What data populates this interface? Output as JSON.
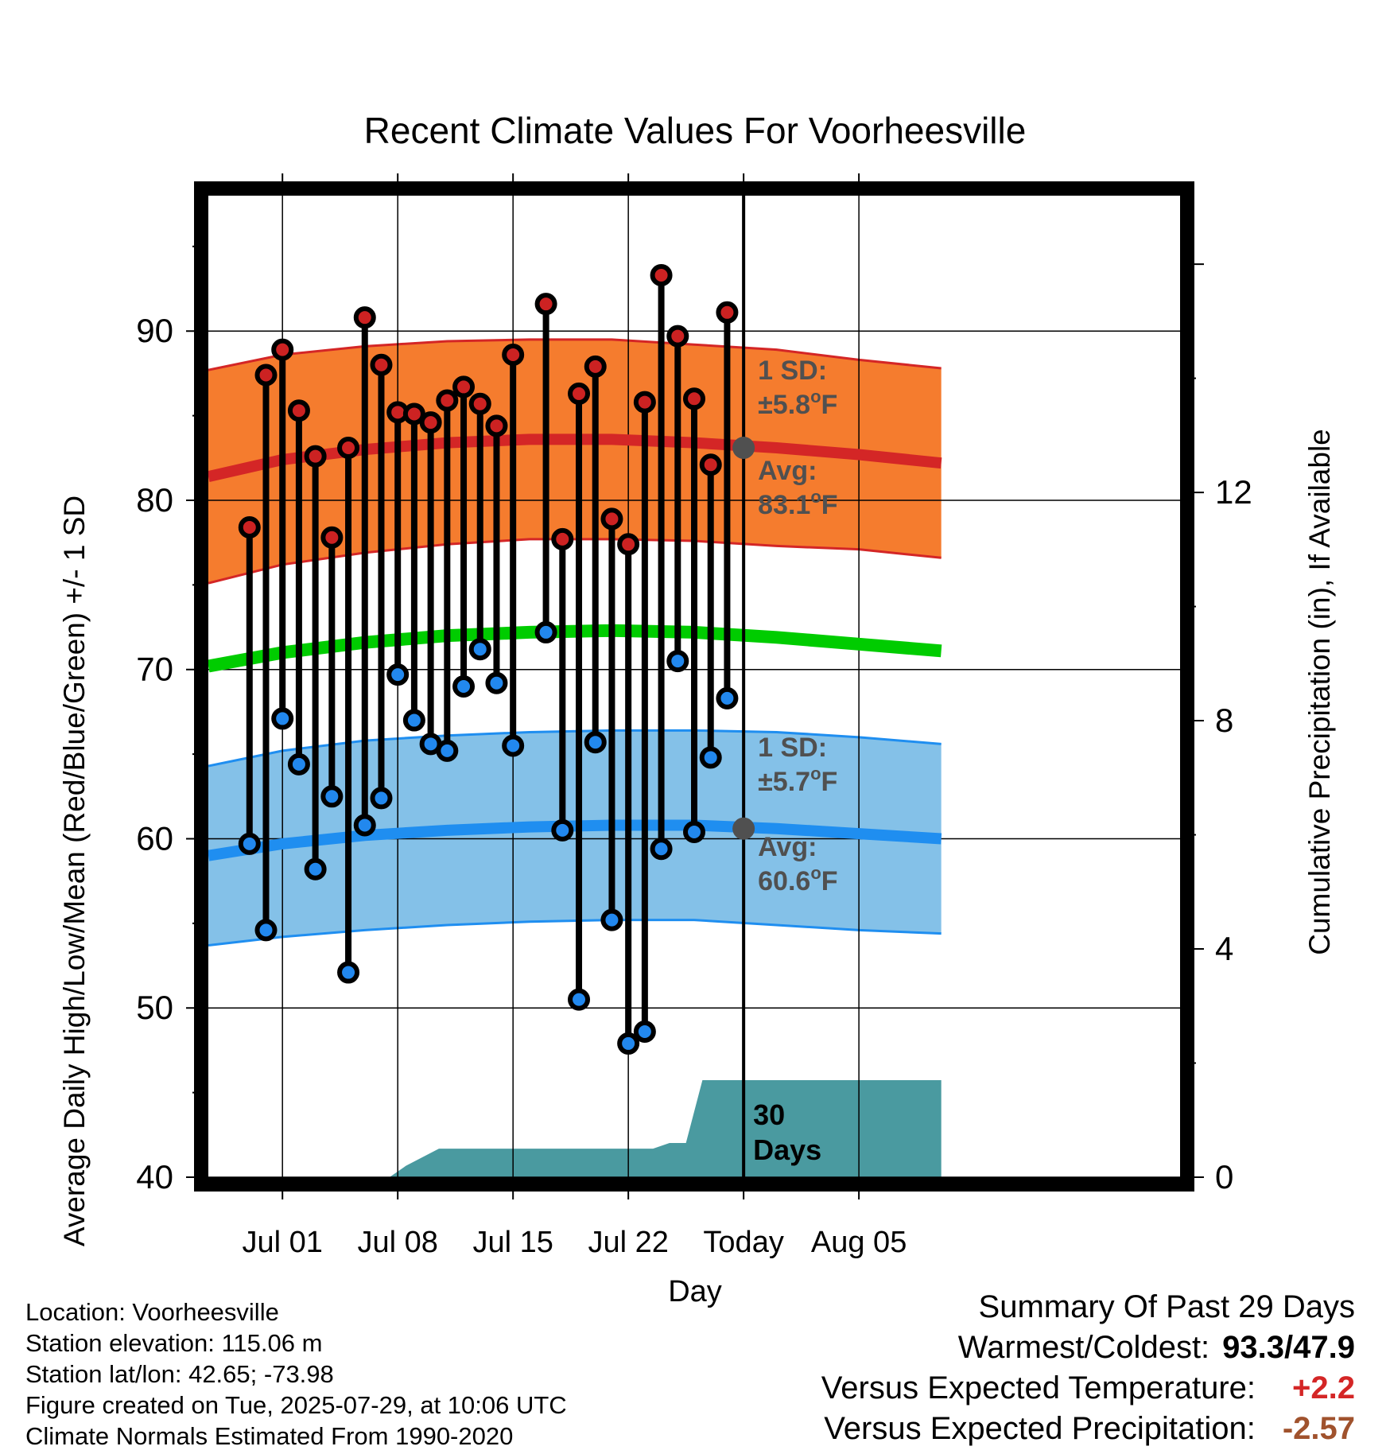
{
  "chart_data": {
    "type": "line",
    "title": "Recent Climate Values For Voorheesville",
    "xlabel": "Day",
    "ylabel": "Average Daily High/Low/Mean (Red/Blue/Green) +/- 1 SD",
    "y2label": "Cumulative Precipitation (in), If Available",
    "ylim": [
      40,
      98
    ],
    "y2lim": [
      0,
      17.2
    ],
    "xlim": [
      -4.5,
      54.5
    ],
    "x_ticks": [
      {
        "day": 0,
        "label": "Jul 01"
      },
      {
        "day": 7,
        "label": "Jul 08"
      },
      {
        "day": 14,
        "label": "Jul 15"
      },
      {
        "day": 21,
        "label": "Jul 22"
      },
      {
        "day": 28,
        "label": "Today"
      },
      {
        "day": 35,
        "label": "Aug 05"
      }
    ],
    "y_ticks": [
      40,
      50,
      60,
      70,
      80,
      90
    ],
    "y2_ticks": [
      0,
      4,
      8,
      12
    ],
    "today_day": 28,
    "grid": true,
    "normals": {
      "days": [
        -4.5,
        0,
        5,
        10,
        15,
        20,
        25,
        30,
        35,
        40
      ],
      "high_mean": [
        81.4,
        82.4,
        83.0,
        83.4,
        83.6,
        83.6,
        83.4,
        83.1,
        82.7,
        82.2
      ],
      "high_sd": [
        6.3,
        6.2,
        6.1,
        6.0,
        5.9,
        5.9,
        5.8,
        5.8,
        5.6,
        5.6
      ],
      "low_mean": [
        59.0,
        59.7,
        60.2,
        60.5,
        60.7,
        60.8,
        60.8,
        60.6,
        60.3,
        60.0
      ],
      "low_sd": [
        5.3,
        5.5,
        5.6,
        5.6,
        5.6,
        5.6,
        5.6,
        5.7,
        5.7,
        5.6
      ],
      "mean": [
        70.2,
        71.0,
        71.6,
        72.0,
        72.2,
        72.3,
        72.2,
        71.9,
        71.5,
        71.1
      ]
    },
    "daily": {
      "days": [
        -2,
        -1,
        0,
        1,
        2,
        3,
        4,
        5,
        6,
        7,
        8,
        9,
        10,
        11,
        12,
        13,
        14,
        16,
        17,
        18,
        19,
        20,
        21,
        22,
        23,
        24,
        25,
        26,
        27
      ],
      "high": [
        78.4,
        87.4,
        88.9,
        85.3,
        82.6,
        77.8,
        83.1,
        90.8,
        88.0,
        85.2,
        85.1,
        84.6,
        85.9,
        86.7,
        85.7,
        84.4,
        88.6,
        91.6,
        77.7,
        86.3,
        87.9,
        78.9,
        77.4,
        85.8,
        93.3,
        89.7,
        86.0,
        82.1,
        91.1
      ],
      "low": [
        59.7,
        54.6,
        67.1,
        64.4,
        58.2,
        62.5,
        52.1,
        60.8,
        62.4,
        69.7,
        67.0,
        65.6,
        65.2,
        69.0,
        71.2,
        69.2,
        65.5,
        72.2,
        60.5,
        50.5,
        65.7,
        55.2,
        47.9,
        48.6,
        59.4,
        70.5,
        60.4,
        64.8,
        68.3
      ]
    },
    "precip": {
      "days": [
        -4.5,
        6.5,
        7.5,
        9.5,
        20.5,
        21.5,
        22.5,
        23.5,
        24.5,
        25.5,
        26.5,
        40
      ],
      "values": [
        0,
        0,
        0.2,
        0.5,
        0.5,
        0.5,
        0.5,
        0.6,
        0.6,
        1.7,
        1.7,
        1.7
      ]
    },
    "annotations": {
      "high_sd_label": "1 SD:",
      "high_sd_value": "±5.8",
      "high_avg_label": "Avg:",
      "high_avg_value": "83.1",
      "low_sd_label": "1 SD:",
      "low_sd_value": "±5.7",
      "low_avg_label": "Avg:",
      "low_avg_value": "60.6",
      "degree_unit": "o",
      "fahrenheit": "F",
      "days_line1": "30",
      "days_line2": "Days"
    },
    "colors": {
      "high_band": "#f57c2e",
      "high_line": "#d42626",
      "low_band": "#84c1e8",
      "low_line": "#1f8ef0",
      "mean_line": "#00cc00",
      "precip": "#4a9aa0",
      "high_dot": "#cc2222",
      "low_dot": "#2288ee",
      "annot": "#505050"
    }
  },
  "footer": {
    "location": "Location: Voorheesville",
    "elevation": "Station elevation: 115.06 m",
    "latlon": "Station lat/lon: 42.65; -73.98",
    "created": "Figure created on Tue, 2025-07-29, at 10:06 UTC",
    "normals": "Climate Normals Estimated From 1990-2020"
  },
  "summary": {
    "heading": "Summary Of Past 29 Days",
    "warm_cold_label": "Warmest/Coldest:",
    "warm_cold_value": "93.3/47.9",
    "temp_label": "Versus Expected Temperature:",
    "temp_value": "+2.2",
    "temp_color": "#d42626",
    "precip_label": "Versus Expected Precipitation:",
    "precip_value": "-2.57",
    "precip_color": "#a0522d"
  }
}
